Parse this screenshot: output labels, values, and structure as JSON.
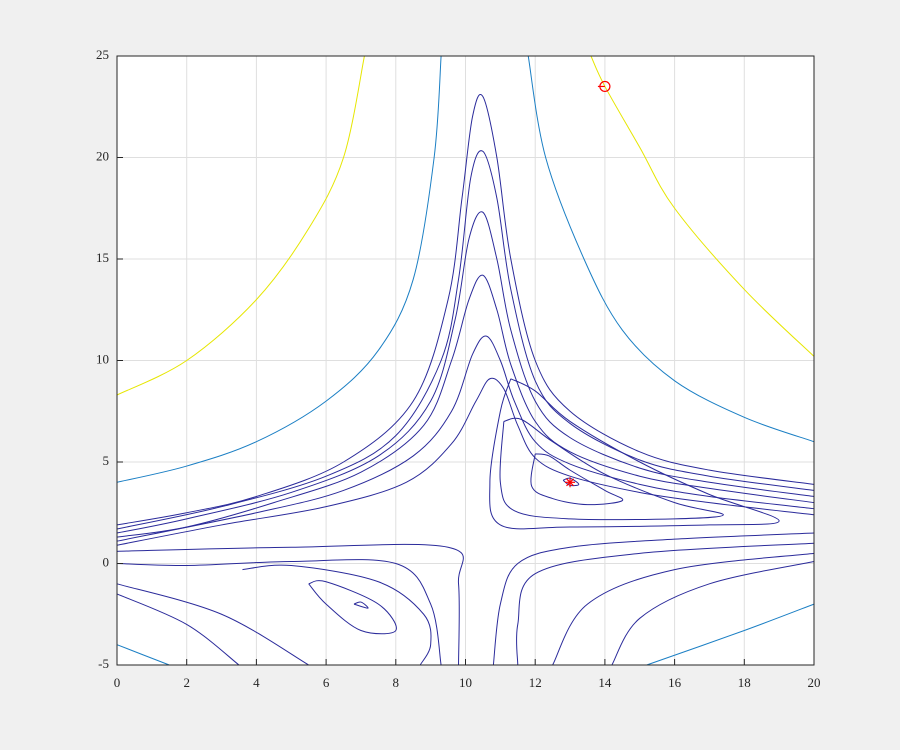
{
  "chart_data": {
    "type": "contour",
    "xlim": [
      0,
      20
    ],
    "ylim": [
      -5,
      25
    ],
    "xticks": [
      0,
      2,
      4,
      6,
      8,
      10,
      12,
      14,
      16,
      18,
      20
    ],
    "yticks": [
      -5,
      0,
      5,
      10,
      15,
      20,
      25
    ],
    "grid": true,
    "series": [
      {
        "color": "#e6e600",
        "x": [
          0,
          2,
          4,
          5.5,
          6.5,
          7.1
        ],
        "y": [
          8.3,
          10,
          13,
          16.5,
          20,
          25
        ]
      },
      {
        "color": "#e6e600",
        "x": [
          13.6,
          14,
          15,
          16,
          18,
          20
        ],
        "y": [
          25,
          23.5,
          20.5,
          17.5,
          13.5,
          10.2
        ]
      },
      {
        "color": "#1b7fc4",
        "x": [
          0,
          2,
          4,
          6,
          7.5,
          8.5,
          9.1,
          9.3
        ],
        "y": [
          4,
          4.8,
          6,
          8,
          10.5,
          14,
          20,
          25
        ]
      },
      {
        "color": "#1b7fc4",
        "x": [
          11.8,
          12.3,
          13.4,
          14.5,
          16,
          18,
          20
        ],
        "y": [
          25,
          20,
          15,
          11.5,
          9,
          7.2,
          6
        ]
      },
      {
        "color": "#1b7fc4",
        "x": [
          0,
          1.5
        ],
        "y": [
          -4,
          -5
        ]
      },
      {
        "color": "#1b7fc4",
        "x": [
          15.2,
          18,
          20
        ],
        "y": [
          -5,
          -3.3,
          -2
        ]
      },
      {
        "color": "#2b2b9b",
        "x": [
          12.8,
          13,
          13.25,
          13,
          12.8
        ],
        "y": [
          4.1,
          4.2,
          3.9,
          3.85,
          4.1
        ]
      },
      {
        "color": "#2b2b9b",
        "x": [
          12,
          12.4,
          13,
          14,
          14.5,
          13.5,
          12.5,
          11.9,
          12
        ],
        "y": [
          5.4,
          5.3,
          4.6,
          3.6,
          3.1,
          2.9,
          3.2,
          3.8,
          5.4
        ]
      },
      {
        "color": "#2b2b9b",
        "x": [
          11.1,
          11.6,
          12.5,
          14,
          16,
          17.4,
          16,
          13,
          11.4,
          11,
          11.1
        ],
        "y": [
          7,
          7.1,
          6,
          4.4,
          3,
          2.4,
          2.2,
          2.2,
          2.6,
          4,
          7
        ]
      },
      {
        "color": "#2b2b9b",
        "x": [
          11.3,
          12,
          13,
          15,
          17,
          19,
          17,
          13,
          11,
          10.7,
          11,
          11.3
        ],
        "y": [
          9.1,
          8.5,
          7,
          5,
          3.4,
          2.1,
          1.9,
          1.8,
          1.9,
          4,
          7.5,
          9.1
        ]
      },
      {
        "color": "#2b2b9b",
        "x": [
          20,
          17,
          15,
          13,
          12,
          11.3,
          10.9,
          10.5,
          10.2,
          9.9,
          9.5,
          8.5,
          6.5,
          4,
          2,
          0
        ],
        "y": [
          3.9,
          4.6,
          5.5,
          7.5,
          10,
          15,
          20,
          23,
          22,
          18,
          13,
          8,
          5,
          3.3,
          2.5,
          1.9
        ]
      },
      {
        "color": "#2b2b9b",
        "x": [
          20,
          17,
          15,
          13,
          12,
          11.3,
          10.9,
          10.5,
          10.15,
          9.8,
          9.3,
          8,
          6,
          3,
          0
        ],
        "y": [
          3.6,
          4.3,
          5.1,
          6.9,
          9,
          13.5,
          18,
          20.3,
          19,
          14,
          10,
          6.3,
          4.3,
          2.8,
          1.7
        ]
      },
      {
        "color": "#2b2b9b",
        "x": [
          20,
          17,
          15,
          13,
          12,
          11.3,
          10.9,
          10.5,
          10.1,
          9.7,
          9,
          7.5,
          5,
          2,
          0
        ],
        "y": [
          3.3,
          4,
          4.7,
          6.2,
          8,
          11.5,
          15,
          17.3,
          16,
          12,
          8,
          5.3,
          3.5,
          2.2,
          1.5
        ]
      },
      {
        "color": "#2b2b9b",
        "x": [
          20,
          17,
          15,
          13,
          12,
          11.3,
          10.9,
          10.5,
          10.1,
          9.6,
          8.8,
          7,
          4.5,
          2,
          0
        ],
        "y": [
          3,
          3.7,
          4.3,
          5.5,
          7,
          9.8,
          12.5,
          14.2,
          13,
          10,
          6.8,
          4.5,
          3,
          1.8,
          1.3
        ]
      },
      {
        "color": "#2b2b9b",
        "x": [
          20,
          17,
          15,
          13,
          12,
          11.4,
          11,
          10.6,
          10.2,
          9.6,
          8.5,
          6.5,
          4,
          0
        ],
        "y": [
          2.7,
          3.3,
          3.9,
          4.9,
          6,
          8,
          10,
          11.2,
          10.3,
          7.5,
          5.3,
          3.6,
          2.5,
          1.1
        ]
      },
      {
        "color": "#2b2b9b",
        "x": [
          20,
          17,
          15,
          13,
          12,
          11.5,
          11.1,
          10.7,
          10.3,
          9.6,
          8.3,
          6,
          3,
          0
        ],
        "y": [
          2.4,
          3,
          3.5,
          4.3,
          5.2,
          6.8,
          8.6,
          9.1,
          8,
          5.9,
          4,
          2.8,
          1.9,
          0.9
        ]
      },
      {
        "color": "#2b2b9b",
        "x": [
          0,
          5,
          9.5,
          9.8,
          9.8
        ],
        "y": [
          0.6,
          0.8,
          0.8,
          -1,
          -5
        ]
      },
      {
        "color": "#2b2b9b",
        "x": [
          20,
          16,
          13,
          11.5,
          11,
          10.8
        ],
        "y": [
          1.5,
          1.2,
          0.8,
          0,
          -2,
          -5
        ]
      },
      {
        "color": "#2b2b9b",
        "x": [
          20,
          15,
          12,
          11.5,
          11.5
        ],
        "y": [
          1,
          0.5,
          -0.5,
          -3,
          -5
        ]
      },
      {
        "color": "#2b2b9b",
        "x": [
          20,
          16,
          13.5,
          12.5
        ],
        "y": [
          0.5,
          -0.3,
          -2,
          -5
        ]
      },
      {
        "color": "#2b2b9b",
        "x": [
          20,
          17,
          15,
          14.2
        ],
        "y": [
          0.1,
          -1,
          -2.7,
          -5
        ]
      },
      {
        "color": "#2b2b9b",
        "x": [
          6.8,
          7.2,
          7,
          6.8
        ],
        "y": [
          -2,
          -2.2,
          -1.9,
          -2
        ]
      },
      {
        "color": "#2b2b9b",
        "x": [
          5.5,
          6,
          7.5,
          8,
          7,
          6,
          5.5
        ],
        "y": [
          -1,
          -0.9,
          -2,
          -3.3,
          -3.3,
          -2,
          -1
        ]
      },
      {
        "color": "#2b2b9b",
        "x": [
          3.6,
          5,
          7.5,
          8.8,
          9,
          8.7
        ],
        "y": [
          -0.3,
          -0.1,
          -0.9,
          -2.5,
          -4,
          -5
        ]
      },
      {
        "color": "#2b2b9b",
        "x": [
          0,
          2,
          5,
          8,
          9,
          9.3
        ],
        "y": [
          0,
          -0.1,
          0.1,
          0,
          -2,
          -5
        ]
      },
      {
        "color": "#2b2b9b",
        "x": [
          0,
          3,
          5.5
        ],
        "y": [
          -1,
          -2.5,
          -5
        ]
      },
      {
        "color": "#2b2b9b",
        "x": [
          0,
          2,
          3.5
        ],
        "y": [
          -1.5,
          -3,
          -5
        ]
      }
    ],
    "markers": [
      {
        "symbol": "circle",
        "color": "#ff0000",
        "x": 14,
        "y": 23.5
      },
      {
        "symbol": "star",
        "color": "#ff0000",
        "x": 13,
        "y": 4
      }
    ]
  }
}
